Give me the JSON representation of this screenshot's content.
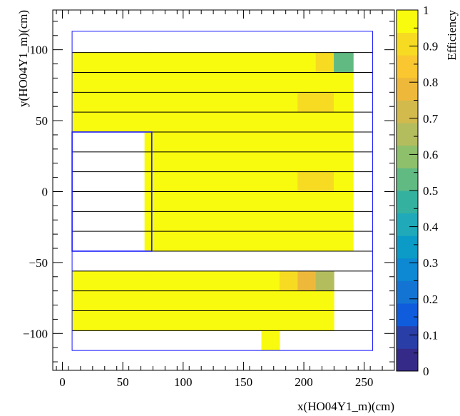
{
  "chart_data": {
    "type": "heatmap",
    "xlabel": "x(HO04Y1_m)(cm)",
    "ylabel": "y(HO04Y1_m)(cm)",
    "zlabel": "Efficiency",
    "xlim": [
      -8,
      275
    ],
    "ylim": [
      -126,
      128
    ],
    "zlim": [
      0,
      1
    ],
    "x_ticks": [
      "0",
      "50",
      "100",
      "150",
      "200",
      "250"
    ],
    "y_ticks": [
      "−100",
      "−50",
      "0",
      "50",
      "100"
    ],
    "z_ticks": [
      "0",
      "0.1",
      "0.2",
      "0.3",
      "0.4",
      "0.5",
      "0.6",
      "0.7",
      "0.8",
      "0.9",
      "1"
    ],
    "palette": [
      "#352a87",
      "#2a3ea8",
      "#0f5cdd",
      "#1474d4",
      "#0d88d2",
      "#0b9bc6",
      "#20a9b9",
      "#35b29f",
      "#62ba83",
      "#8ebf6b",
      "#b4bd5d",
      "#d2ba4d",
      "#eeb93a",
      "#fbc730",
      "#f6db22",
      "#f9fb0e"
    ],
    "column_edges": [
      8,
      38,
      73,
      165,
      180,
      195,
      210,
      225,
      241,
      257
    ],
    "default_value": 0.995,
    "rows": [
      {
        "y": [
          -112,
          -98
        ],
        "x": [
          165,
          180
        ],
        "cells": []
      },
      {
        "y": [
          -98,
          -84
        ],
        "x": [
          8,
          225
        ],
        "cells": [
          {
            "x": [
              195,
              210
            ],
            "value": 0.965
          }
        ]
      },
      {
        "y": [
          -84,
          -70
        ],
        "x": [
          8,
          225
        ],
        "cells": [
          {
            "x": [
              8,
              38
            ],
            "value": 0.96
          },
          {
            "x": [
              195,
              225
            ],
            "value": 0.96
          }
        ]
      },
      {
        "y": [
          -70,
          -56
        ],
        "x": [
          8,
          225
        ],
        "cells": [
          {
            "x": [
              165,
              180
            ],
            "value": 0.955
          },
          {
            "x": [
              180,
              195
            ],
            "value": 0.91
          },
          {
            "x": [
              195,
              210
            ],
            "value": 0.8
          },
          {
            "x": [
              210,
              225
            ],
            "value": 0.67
          }
        ]
      },
      {
        "y": [
          -42,
          -28
        ],
        "x": [
          73,
          241
        ],
        "cells": []
      },
      {
        "y": [
          -28,
          -14
        ],
        "x": [
          73,
          241
        ],
        "cells": []
      },
      {
        "y": [
          -14,
          0
        ],
        "x": [
          73,
          241
        ],
        "cells": []
      },
      {
        "y": [
          0,
          14
        ],
        "x": [
          73,
          241
        ],
        "cells": [
          {
            "x": [
              180,
              195
            ],
            "value": 0.965
          },
          {
            "x": [
              195,
              225
            ],
            "value": 0.925
          }
        ]
      },
      {
        "y": [
          14,
          28
        ],
        "x": [
          73,
          241
        ],
        "cells": []
      },
      {
        "y": [
          28,
          42
        ],
        "x": [
          73,
          241
        ],
        "cells": []
      },
      {
        "y": [
          42,
          56
        ],
        "x": [
          8,
          241
        ],
        "cells": []
      },
      {
        "y": [
          56,
          70
        ],
        "x": [
          8,
          241
        ],
        "cells": [
          {
            "x": [
              180,
              195
            ],
            "value": 0.965
          },
          {
            "x": [
              195,
              225
            ],
            "value": 0.885
          }
        ]
      },
      {
        "y": [
          70,
          84
        ],
        "x": [
          8,
          241
        ],
        "cells": [
          {
            "x": [
              8,
              38
            ],
            "value": 0.955
          },
          {
            "x": [
              195,
              225
            ],
            "value": 0.955
          }
        ]
      },
      {
        "y": [
          84,
          98
        ],
        "x": [
          8,
          241
        ],
        "cells": [
          {
            "x": [
              180,
              195
            ],
            "value": 0.965
          },
          {
            "x": [
              195,
              210
            ],
            "value": 0.955
          },
          {
            "x": [
              210,
              225
            ],
            "value": 0.91
          },
          {
            "x": [
              225,
              241
            ],
            "value": 0.55
          }
        ]
      }
    ],
    "inner_strip": {
      "x": [
        68,
        73
      ],
      "y": [
        -42,
        42
      ],
      "value": 0.995
    },
    "separator_lines_y": [
      -98,
      -84,
      -70,
      -56,
      -42,
      -28,
      -14,
      0,
      14,
      28,
      42,
      56,
      70,
      84,
      98
    ],
    "outer_frame": {
      "x": [
        8,
        257
      ],
      "y": [
        -112,
        113
      ]
    },
    "cutout_frame": {
      "x": [
        8,
        74
      ],
      "y": [
        -42,
        42
      ]
    },
    "grid": false
  }
}
